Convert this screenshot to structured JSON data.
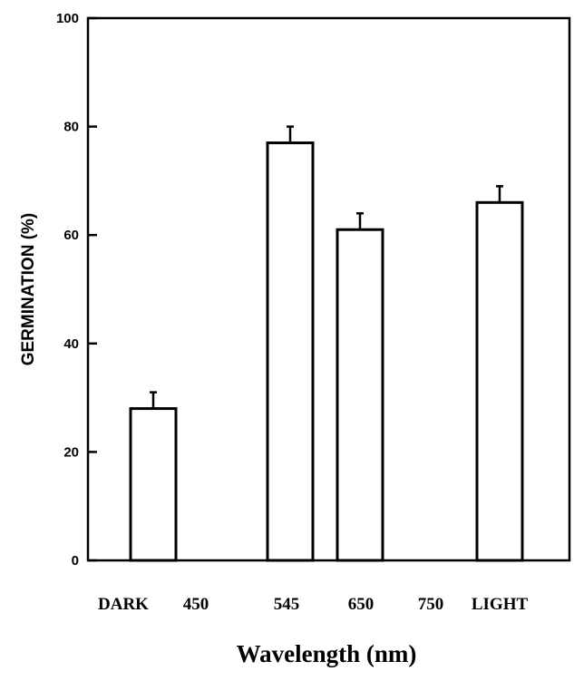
{
  "chart_data": {
    "type": "bar",
    "title": "",
    "xlabel": "Wavelength (nm)",
    "ylabel": "GERMINATION (%)",
    "ylim": [
      0,
      100
    ],
    "yticks": [
      0,
      20,
      40,
      60,
      80,
      100
    ],
    "ytick_labels": [
      "0",
      "20",
      "40",
      "60",
      "80",
      "100"
    ],
    "categories": [
      "DARK",
      "450",
      "545",
      "650",
      "750",
      "LIGHT"
    ],
    "series": [
      {
        "values": [
          28,
          0,
          77,
          61,
          0,
          66
        ],
        "errors": [
          3,
          0,
          3,
          3,
          0,
          3
        ]
      }
    ],
    "grid": false,
    "legend": "none",
    "bar_fill": "#ffffff",
    "bar_stroke": "#000000"
  }
}
